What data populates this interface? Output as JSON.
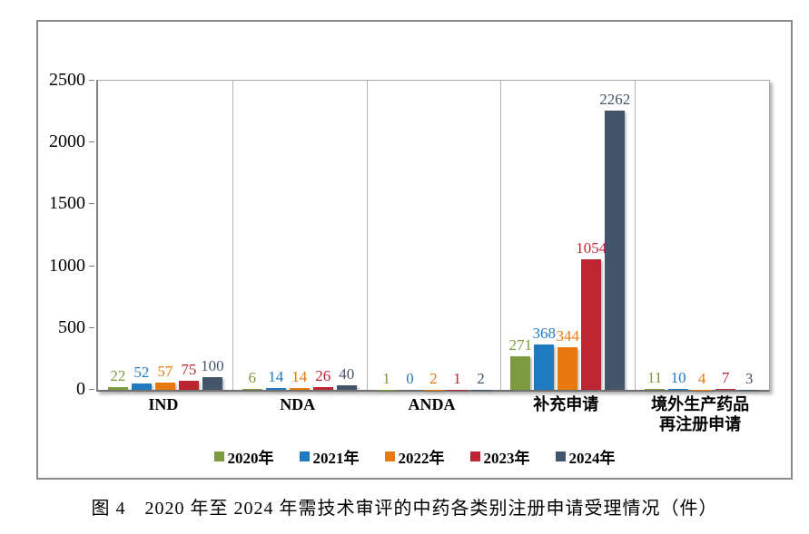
{
  "figure": {
    "caption": "图 4　2020 年至 2024 年需技术审评的中药各类别注册申请受理情况（件）"
  },
  "chart_data": {
    "type": "bar",
    "title": "",
    "xlabel": "",
    "ylabel": "",
    "categories": [
      "IND",
      "NDA",
      "ANDA",
      "补充申请",
      "境外生产药品\n再注册申请"
    ],
    "series": [
      {
        "name": "2020年",
        "color": "#7C9A3F",
        "values": [
          22,
          6,
          1,
          271,
          11
        ]
      },
      {
        "name": "2021年",
        "color": "#1F7AC0",
        "values": [
          52,
          14,
          0,
          368,
          10
        ]
      },
      {
        "name": "2022年",
        "color": "#E8790E",
        "values": [
          57,
          14,
          2,
          344,
          4
        ]
      },
      {
        "name": "2023年",
        "color": "#BE2533",
        "values": [
          75,
          26,
          1,
          1054,
          7
        ]
      },
      {
        "name": "2024年",
        "color": "#44546A",
        "values": [
          100,
          40,
          2,
          2262,
          3
        ]
      }
    ],
    "ylim": [
      0,
      2500
    ],
    "yticks": [
      0,
      500,
      1000,
      1500,
      2000,
      2500
    ],
    "grid": "category-dividers-only",
    "legend_position": "bottom",
    "data_labels": true
  }
}
